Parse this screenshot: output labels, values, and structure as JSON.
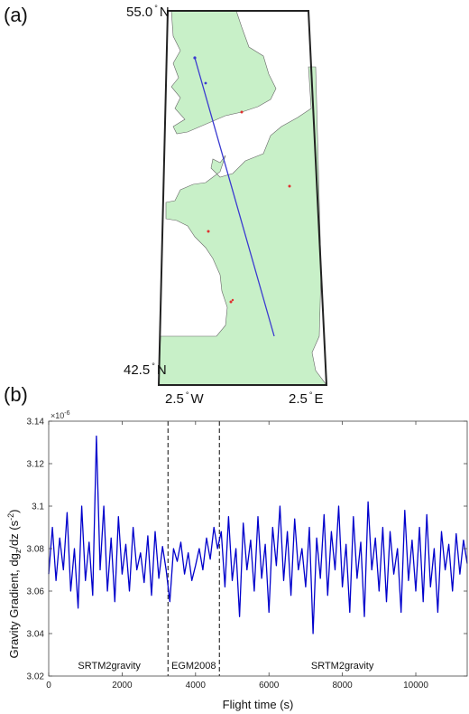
{
  "panel_a": {
    "label": "(a)",
    "top_lat": {
      "value": "55.0",
      "deg": "°",
      "hemi": "N"
    },
    "bottom_lat": {
      "value": "42.5",
      "deg": "°",
      "hemi": "N"
    },
    "left_lon": {
      "value": "2.5",
      "deg": "°",
      "hemi": "W"
    },
    "right_lon": {
      "value": "2.5",
      "deg": "°",
      "hemi": "E"
    },
    "colors": {
      "land": "#c8f0c8",
      "sea": "#ffffff",
      "track": "#3a3ad0",
      "points": "#e03030"
    }
  },
  "panel_b": {
    "label": "(b)",
    "exponent": "×10",
    "exponent_power": "-6",
    "color": "#0000cc"
  },
  "chart_data": {
    "type": "line",
    "title": "",
    "xlabel": "Flight time (s)",
    "ylabel": "Gravity Gradient, dg_z/dz (s^-2)",
    "xlim": [
      0,
      11400
    ],
    "ylim": [
      3.02,
      3.14
    ],
    "y_scale_factor": "1e-6",
    "xticks": [
      0,
      2000,
      4000,
      6000,
      8000,
      10000
    ],
    "yticks": [
      3.02,
      3.04,
      3.06,
      3.08,
      3.1,
      3.12,
      3.14
    ],
    "ytick_labels": [
      "3.02",
      "3.04",
      "3.06",
      "3.08",
      "3.1",
      "3.12",
      "3.14"
    ],
    "boundaries": [
      3250,
      4650
    ],
    "regions": [
      {
        "label": "SRTM2gravity",
        "x": 1650
      },
      {
        "label": "EGM2008",
        "x": 3950
      },
      {
        "label": "SRTM2gravity",
        "x": 8000
      }
    ],
    "series": [
      {
        "x": [
          0,
          100,
          200,
          300,
          400,
          500,
          600,
          700,
          800,
          900,
          1000,
          1100,
          1200,
          1300,
          1400,
          1500,
          1600,
          1700,
          1800,
          1900,
          2000,
          2100,
          2200,
          2300,
          2400,
          2500,
          2600,
          2700,
          2800,
          2900,
          3000,
          3100,
          3200,
          3300,
          3400,
          3500,
          3600,
          3700,
          3800,
          3900,
          4000,
          4100,
          4200,
          4300,
          4400,
          4500,
          4600,
          4700,
          4800,
          4900,
          5000,
          5100,
          5200,
          5300,
          5400,
          5500,
          5600,
          5700,
          5800,
          5900,
          6000,
          6100,
          6200,
          6300,
          6400,
          6500,
          6600,
          6700,
          6800,
          6900,
          7000,
          7100,
          7200,
          7300,
          7400,
          7500,
          7600,
          7700,
          7800,
          7900,
          8000,
          8100,
          8200,
          8300,
          8400,
          8500,
          8600,
          8700,
          8800,
          8900,
          9000,
          9100,
          9200,
          9300,
          9400,
          9500,
          9600,
          9700,
          9800,
          9900,
          10000,
          10100,
          10200,
          10300,
          10400,
          10500,
          10600,
          10700,
          10800,
          10900,
          11000,
          11100,
          11200,
          11300,
          11400
        ],
        "y": [
          3.068,
          3.09,
          3.065,
          3.085,
          3.07,
          3.097,
          3.06,
          3.08,
          3.052,
          3.1,
          3.065,
          3.083,
          3.058,
          3.133,
          3.07,
          3.1,
          3.06,
          3.085,
          3.055,
          3.095,
          3.068,
          3.082,
          3.06,
          3.09,
          3.07,
          3.078,
          3.064,
          3.086,
          3.058,
          3.088,
          3.066,
          3.081,
          3.07,
          3.055,
          3.08,
          3.074,
          3.083,
          3.068,
          3.078,
          3.065,
          3.072,
          3.08,
          3.07,
          3.085,
          3.075,
          3.09,
          3.08,
          3.088,
          3.062,
          3.095,
          3.065,
          3.08,
          3.048,
          3.092,
          3.07,
          3.084,
          3.06,
          3.095,
          3.066,
          3.082,
          3.05,
          3.09,
          3.072,
          3.1,
          3.065,
          3.088,
          3.058,
          3.094,
          3.07,
          3.08,
          3.062,
          3.09,
          3.04,
          3.085,
          3.066,
          3.096,
          3.058,
          3.088,
          3.07,
          3.1,
          3.062,
          3.082,
          3.05,
          3.095,
          3.066,
          3.083,
          3.048,
          3.102,
          3.07,
          3.085,
          3.06,
          3.09,
          3.055,
          3.088,
          3.068,
          3.08,
          3.05,
          3.098,
          3.065,
          3.084,
          3.06,
          3.09,
          3.055,
          3.096,
          3.062,
          3.08,
          3.05,
          3.088,
          3.07,
          3.082,
          3.06,
          3.087,
          3.068,
          3.084,
          3.073
        ]
      }
    ]
  }
}
